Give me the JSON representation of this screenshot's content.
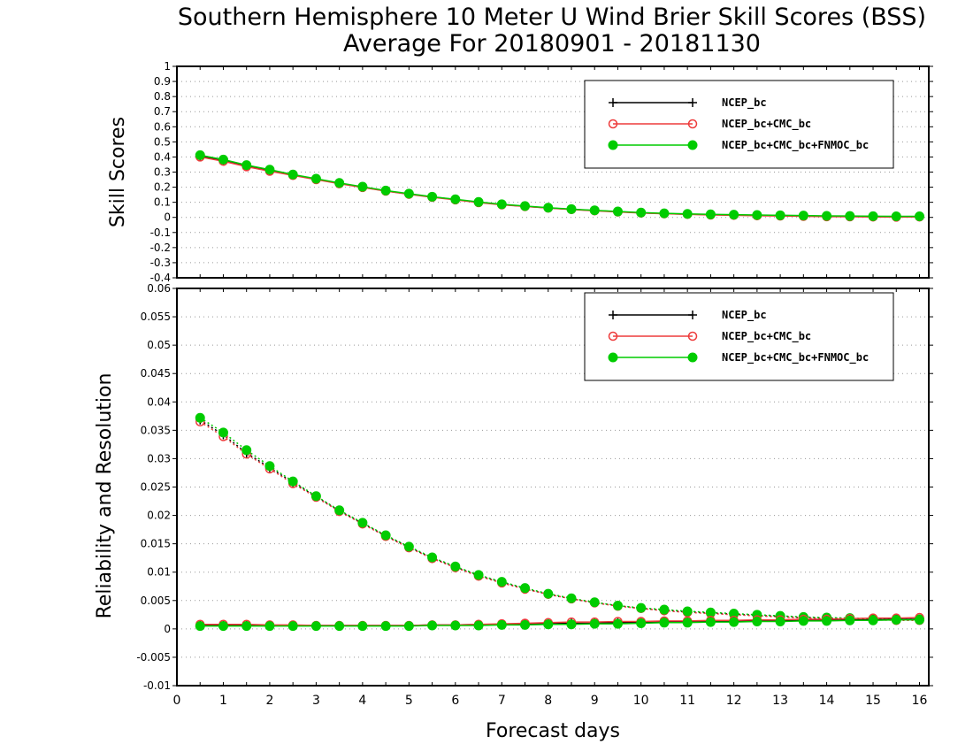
{
  "title_line1": "Southern Hemisphere 10 Meter U Wind Brier Skill Scores (BSS)",
  "title_line2": "Average For 20180901 - 20181130",
  "colors": {
    "ncep": "#000000",
    "ncep_cmc": "#ee3b3b",
    "ncep_cmc_fnmoc": "#00cc00",
    "grid": "#999999"
  },
  "chart_data": [
    {
      "type": "line",
      "ylabel": "Skill Scores",
      "xlabel": "",
      "xlim": [
        0,
        16.2
      ],
      "ylim": [
        -0.4,
        1
      ],
      "yticks": [
        "1",
        "0.9",
        "0.8",
        "0.7",
        "0.6",
        "0.5",
        "0.4",
        "0.3",
        "0.2",
        "0.1",
        "0",
        "-0.1",
        "-0.2",
        "-0.3",
        "-0.4"
      ],
      "ytick_values": [
        1,
        0.9,
        0.8,
        0.7,
        0.6,
        0.5,
        0.4,
        0.3,
        0.2,
        0.1,
        0,
        -0.1,
        -0.2,
        -0.3,
        -0.4
      ],
      "grid": true,
      "legend_position": "top-right",
      "x": [
        0.5,
        1,
        1.5,
        2,
        2.5,
        3,
        3.5,
        4,
        4.5,
        5,
        5.5,
        6,
        6.5,
        7,
        7.5,
        8,
        8.5,
        9,
        9.5,
        10,
        10.5,
        11,
        11.5,
        12,
        12.5,
        13,
        13.5,
        14,
        14.5,
        15,
        15.5,
        16
      ],
      "series": [
        {
          "name": "NCEP_bc",
          "style": "line-plus",
          "color": "#000000",
          "values": [
            0.405,
            0.375,
            0.34,
            0.31,
            0.28,
            0.253,
            0.225,
            0.2,
            0.175,
            0.155,
            0.135,
            0.118,
            0.1,
            0.085,
            0.073,
            0.063,
            0.053,
            0.045,
            0.038,
            0.03,
            0.025,
            0.021,
            0.018,
            0.016,
            0.014,
            0.012,
            0.01,
            0.008,
            0.007,
            0.006,
            0.005,
            0.005
          ]
        },
        {
          "name": "NCEP_bc+CMC_bc",
          "style": "line-open-circle",
          "color": "#ee3b3b",
          "values": [
            0.4,
            0.372,
            0.336,
            0.306,
            0.278,
            0.25,
            0.223,
            0.198,
            0.174,
            0.153,
            0.133,
            0.116,
            0.098,
            0.083,
            0.072,
            0.062,
            0.052,
            0.044,
            0.036,
            0.029,
            0.024,
            0.02,
            0.016,
            0.014,
            0.011,
            0.009,
            0.007,
            0.005,
            0.004,
            0.003,
            0.002,
            0.003
          ]
        },
        {
          "name": "NCEP_bc+CMC_bc+FNMOC_bc",
          "style": "line-filled-circle",
          "color": "#00cc00",
          "values": [
            0.412,
            0.383,
            0.346,
            0.316,
            0.284,
            0.256,
            0.228,
            0.203,
            0.178,
            0.157,
            0.137,
            0.12,
            0.102,
            0.087,
            0.075,
            0.064,
            0.055,
            0.047,
            0.039,
            0.032,
            0.027,
            0.023,
            0.02,
            0.018,
            0.016,
            0.014,
            0.012,
            0.01,
            0.009,
            0.008,
            0.007,
            0.007
          ]
        }
      ]
    },
    {
      "type": "line",
      "ylabel": "Reliability and Resolution",
      "xlabel": "Forecast days",
      "xlim": [
        0,
        16.2
      ],
      "ylim": [
        -0.01,
        0.06
      ],
      "yticks": [
        "0.06",
        "0.055",
        "0.05",
        "0.045",
        "0.04",
        "0.035",
        "0.03",
        "0.025",
        "0.02",
        "0.015",
        "0.01",
        "0.005",
        "0",
        "-0.005",
        "-0.01"
      ],
      "ytick_values": [
        0.06,
        0.055,
        0.05,
        0.045,
        0.04,
        0.035,
        0.03,
        0.025,
        0.02,
        0.015,
        0.01,
        0.005,
        0,
        -0.005,
        -0.01
      ],
      "xticks": [
        "0",
        "1",
        "2",
        "3",
        "4",
        "5",
        "6",
        "7",
        "8",
        "9",
        "10",
        "11",
        "12",
        "13",
        "14",
        "15",
        "16"
      ],
      "xtick_values": [
        0,
        1,
        2,
        3,
        4,
        5,
        6,
        7,
        8,
        9,
        10,
        11,
        12,
        13,
        14,
        15,
        16
      ],
      "grid": true,
      "legend_position": "top-right",
      "x": [
        0.5,
        1,
        1.5,
        2,
        2.5,
        3,
        3.5,
        4,
        4.5,
        5,
        5.5,
        6,
        6.5,
        7,
        7.5,
        8,
        8.5,
        9,
        9.5,
        10,
        10.5,
        11,
        11.5,
        12,
        12.5,
        13,
        13.5,
        14,
        14.5,
        15,
        15.5,
        16
      ],
      "series": [
        {
          "name": "NCEP_bc",
          "kind": "resolution",
          "style": "dotted-plus",
          "color": "#000000",
          "values": [
            0.0368,
            0.0342,
            0.031,
            0.0284,
            0.0258,
            0.0233,
            0.0208,
            0.0186,
            0.0164,
            0.0144,
            0.0125,
            0.0109,
            0.0094,
            0.0082,
            0.0071,
            0.0061,
            0.0053,
            0.0046,
            0.0041,
            0.0036,
            0.0033,
            0.003,
            0.0028,
            0.0026,
            0.0024,
            0.0022,
            0.002,
            0.0019,
            0.0018,
            0.0017,
            0.0016,
            0.0016
          ]
        },
        {
          "name": "NCEP_bc+CMC_bc",
          "kind": "resolution",
          "style": "dotted-open-circle",
          "color": "#ee3b3b",
          "values": [
            0.0365,
            0.0339,
            0.0308,
            0.0282,
            0.0256,
            0.0232,
            0.0207,
            0.0185,
            0.0163,
            0.0143,
            0.0124,
            0.0108,
            0.0093,
            0.0081,
            0.007,
            0.0061,
            0.0053,
            0.0046,
            0.004,
            0.0036,
            0.0032,
            0.0029,
            0.0027,
            0.0025,
            0.0023,
            0.0021,
            0.0019,
            0.0018,
            0.0017,
            0.0016,
            0.0015,
            0.0015
          ]
        },
        {
          "name": "NCEP_bc+CMC_bc+FNMOC_bc",
          "kind": "resolution",
          "style": "dotted-filled-circle",
          "color": "#00cc00",
          "values": [
            0.0372,
            0.0346,
            0.0315,
            0.0287,
            0.026,
            0.0234,
            0.0209,
            0.0187,
            0.0165,
            0.0145,
            0.0126,
            0.011,
            0.0095,
            0.0083,
            0.0072,
            0.0062,
            0.0054,
            0.0047,
            0.0041,
            0.0037,
            0.0034,
            0.0031,
            0.0029,
            0.0027,
            0.0025,
            0.0023,
            0.0021,
            0.002,
            0.0019,
            0.0018,
            0.0017,
            0.0017
          ]
        },
        {
          "name": "NCEP_bc",
          "kind": "reliability",
          "style": "line-plus",
          "color": "#000000",
          "values": [
            0.0007,
            0.0007,
            0.0007,
            0.0006,
            0.0006,
            0.0006,
            0.0006,
            0.0006,
            0.0006,
            0.0006,
            0.0007,
            0.0007,
            0.0008,
            0.0008,
            0.0009,
            0.0009,
            0.001,
            0.001,
            0.0011,
            0.0011,
            0.0012,
            0.0012,
            0.0013,
            0.0013,
            0.0014,
            0.0014,
            0.0015,
            0.0015,
            0.0016,
            0.0016,
            0.0017,
            0.0017
          ]
        },
        {
          "name": "NCEP_bc+CMC_bc",
          "kind": "reliability",
          "style": "line-open-circle",
          "color": "#ee3b3b",
          "values": [
            0.0008,
            0.0008,
            0.0008,
            0.0007,
            0.0007,
            0.0006,
            0.0006,
            0.0006,
            0.0006,
            0.0006,
            0.0007,
            0.0007,
            0.0008,
            0.0009,
            0.001,
            0.0011,
            0.0012,
            0.0012,
            0.0013,
            0.0013,
            0.0014,
            0.0014,
            0.0015,
            0.0015,
            0.0016,
            0.0016,
            0.0017,
            0.0017,
            0.0018,
            0.0019,
            0.0019,
            0.002
          ]
        },
        {
          "name": "NCEP_bc+CMC_bc+FNMOC_bc",
          "kind": "reliability",
          "style": "line-filled-circle",
          "color": "#00cc00",
          "values": [
            0.0005,
            0.0005,
            0.0005,
            0.0005,
            0.0005,
            0.0005,
            0.0005,
            0.0005,
            0.0005,
            0.0005,
            0.0006,
            0.0006,
            0.0006,
            0.0007,
            0.0007,
            0.0008,
            0.0008,
            0.0009,
            0.0009,
            0.001,
            0.0011,
            0.0011,
            0.0012,
            0.0012,
            0.0013,
            0.0013,
            0.0014,
            0.0014,
            0.0015,
            0.0015,
            0.0016,
            0.0016
          ]
        }
      ]
    }
  ]
}
